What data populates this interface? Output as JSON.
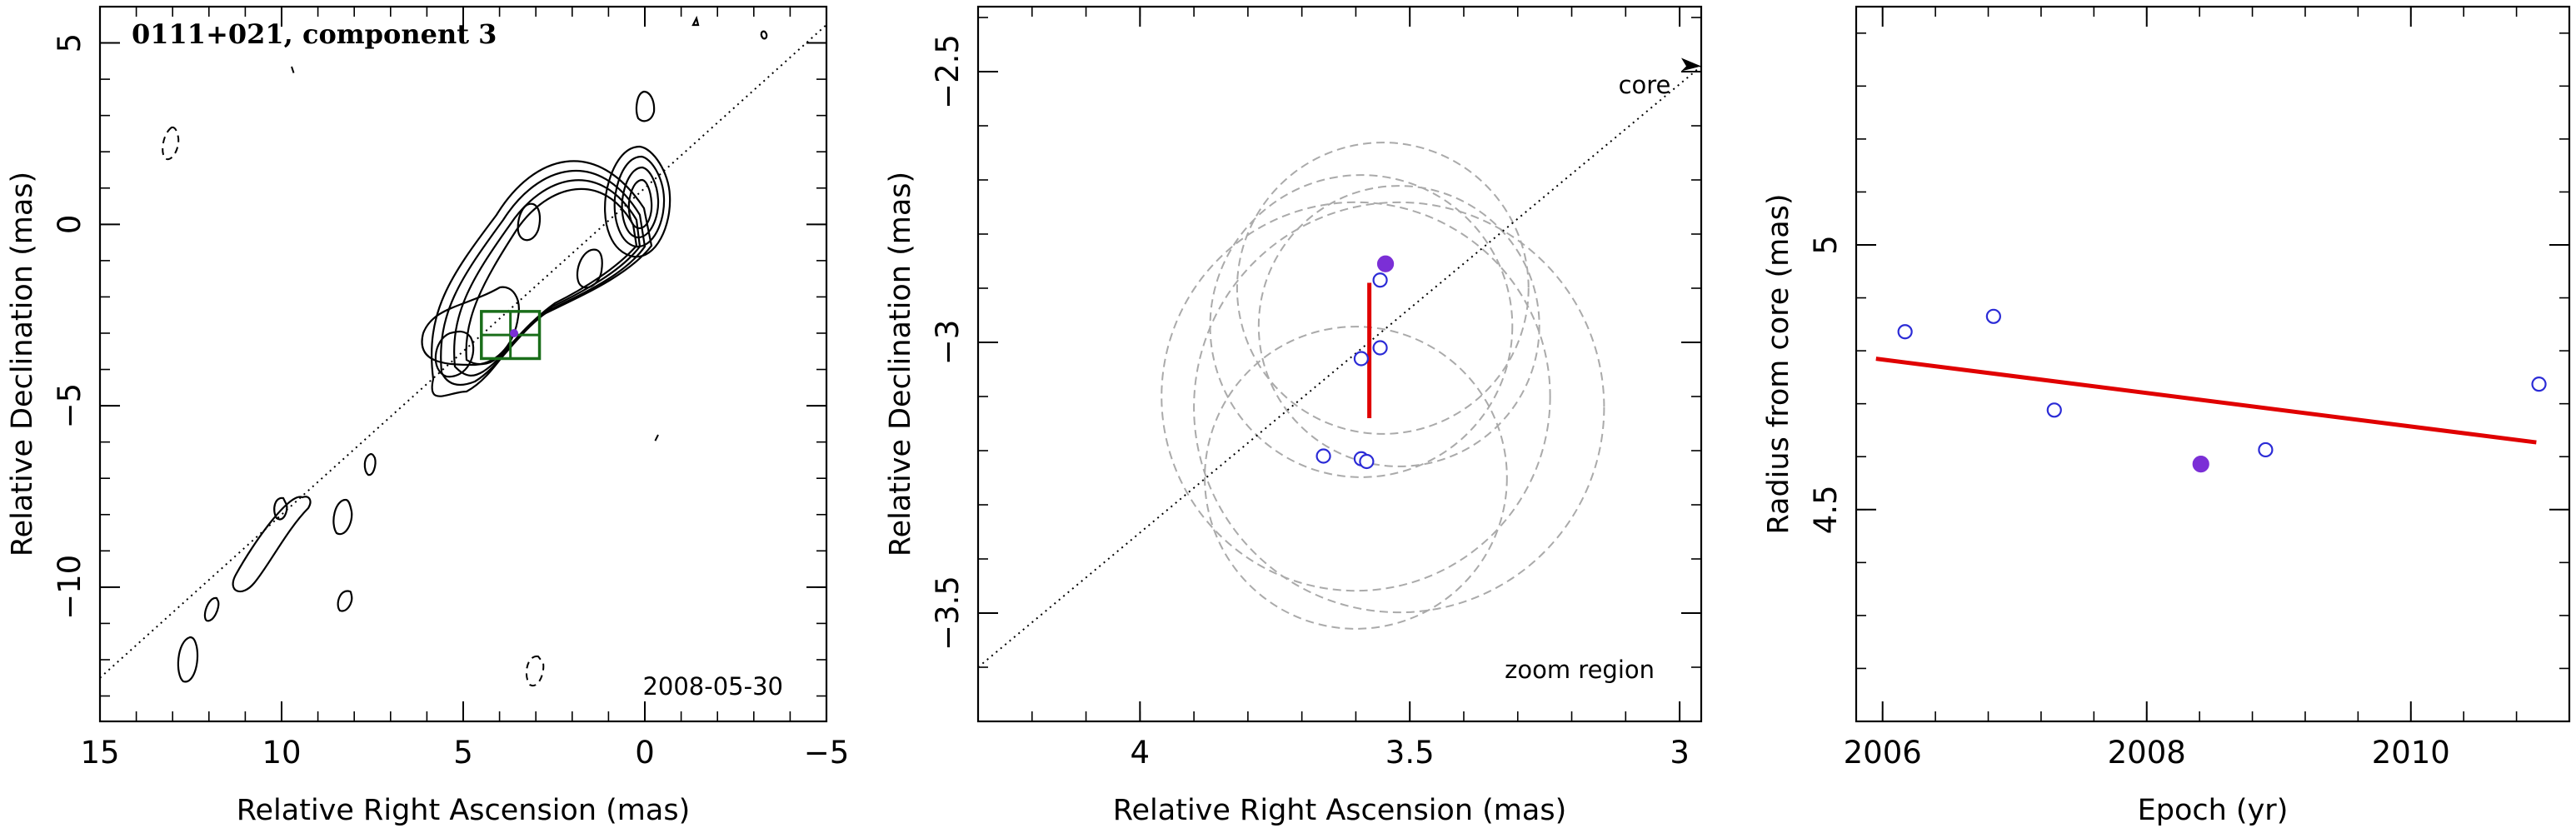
{
  "chart_data": [
    {
      "type": "scatter",
      "panel": "contour map",
      "title": "0111+021, component 3",
      "date_label": "2008-05-30",
      "xlabel": "Relative Right Ascension (mas)",
      "ylabel": "Relative Declination (mas)",
      "xlim": [
        15,
        -5
      ],
      "ylim": [
        -13.7,
        6
      ],
      "xticks": [
        15,
        10,
        5,
        0,
        -5
      ],
      "yticks": [
        5,
        0,
        -5,
        -10
      ],
      "jet_axis": [
        [
          15,
          -12.5
        ],
        [
          -5,
          5.5
        ]
      ],
      "zoom_box": [
        [
          4.5,
          -2.4
        ],
        [
          2.9,
          -3.7
        ]
      ],
      "component": {
        "x": 3.6,
        "y": -3.0
      },
      "colors": {
        "contour": "#000000",
        "box": "#1a6e1a",
        "component": "#7b2fd6"
      }
    },
    {
      "type": "scatter",
      "panel": "zoom region",
      "region_label": "zoom region",
      "core_label": "core",
      "xlabel": "Relative Right Ascension (mas)",
      "ylabel": "Relative Declination (mas)",
      "xlim": [
        4.3,
        2.96
      ],
      "ylim": [
        -3.7,
        -2.38
      ],
      "xticks": [
        4,
        3.5,
        3
      ],
      "yticks": [
        -2.5,
        -3,
        -3.5
      ],
      "series": [
        {
          "marker": "open-circle",
          "x": [
            3.66,
            3.59,
            3.555,
            3.59,
            3.555,
            3.58
          ],
          "y": [
            -3.21,
            -3.03,
            -3.01,
            -3.215,
            -2.885,
            -3.22
          ]
        },
        {
          "marker": "filled-circle",
          "x": [
            3.545
          ],
          "y": [
            -2.855
          ]
        }
      ],
      "error_bar": {
        "x": 3.575,
        "y": [
          -3.14,
          -2.89
        ]
      },
      "beam_circles": [
        {
          "x": 3.59,
          "y": -2.97,
          "r": 0.28
        },
        {
          "x": 3.55,
          "y": -2.9,
          "r": 0.27
        },
        {
          "x": 3.52,
          "y": -2.97,
          "r": 0.26
        },
        {
          "x": 3.6,
          "y": -3.25,
          "r": 0.28
        },
        {
          "x": 3.52,
          "y": -3.12,
          "r": 0.38
        },
        {
          "x": 3.6,
          "y": -3.1,
          "r": 0.36
        }
      ],
      "colors": {
        "open": "#2b2bd6",
        "filled": "#7b2fd6",
        "error_bar": "#e00000",
        "circles": "#aaaaaa"
      }
    },
    {
      "type": "scatter",
      "panel": "radius vs epoch",
      "xlabel": "Epoch (yr)",
      "ylabel": "Radius from core (mas)",
      "xlim": [
        2005.8,
        2011.2
      ],
      "ylim": [
        4.1,
        5.45
      ],
      "xticks": [
        2006,
        2008,
        2010
      ],
      "yticks": [
        4.5,
        5
      ],
      "series": [
        {
          "marker": "open-circle",
          "x": [
            2006.17,
            2006.84,
            2007.3,
            2008.9,
            2010.97
          ],
          "y": [
            4.836,
            4.865,
            4.688,
            4.613,
            4.737
          ]
        },
        {
          "marker": "filled-circle",
          "x": [
            2008.41
          ],
          "y": [
            4.586
          ]
        }
      ],
      "fit_line": {
        "x": [
          2005.95,
          2010.95
        ],
        "y": [
          4.785,
          4.627
        ]
      },
      "colors": {
        "open": "#2b2bd6",
        "filled": "#7b2fd6",
        "fit": "#e00000"
      }
    }
  ]
}
